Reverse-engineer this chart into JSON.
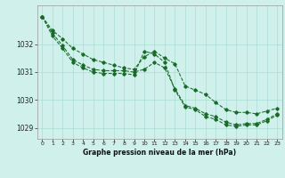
{
  "xlabel": "Graphe pression niveau de la mer (hPa)",
  "background_color": "#cff0eb",
  "grid_color": "#aaddd5",
  "line_color": "#1a6b2a",
  "spine_color": "#999999",
  "ylim": [
    1028.6,
    1033.4
  ],
  "xlim": [
    -0.5,
    23.5
  ],
  "yticks": [
    1029,
    1030,
    1031,
    1032
  ],
  "xticks": [
    0,
    1,
    2,
    3,
    4,
    5,
    6,
    7,
    8,
    9,
    10,
    11,
    12,
    13,
    14,
    15,
    16,
    17,
    18,
    19,
    20,
    21,
    22,
    23
  ],
  "series1": [
    1033.0,
    1032.5,
    1032.2,
    1031.85,
    1031.65,
    1031.45,
    1031.35,
    1031.25,
    1031.15,
    1031.1,
    1031.55,
    1031.75,
    1031.5,
    1031.3,
    1030.5,
    1030.35,
    1030.2,
    1029.9,
    1029.65,
    1029.55,
    1029.55,
    1029.5,
    1029.6,
    1029.7
  ],
  "series2": [
    1033.0,
    1032.4,
    1031.95,
    1031.45,
    1031.25,
    1031.1,
    1031.05,
    1031.05,
    1031.05,
    1031.0,
    1031.1,
    1031.35,
    1031.15,
    1030.4,
    1029.8,
    1029.7,
    1029.5,
    1029.4,
    1029.2,
    1029.1,
    1029.15,
    1029.15,
    1029.3,
    1029.5
  ],
  "series3": [
    1033.0,
    1032.3,
    1031.85,
    1031.35,
    1031.15,
    1031.0,
    1030.95,
    1030.95,
    1030.95,
    1030.9,
    1031.75,
    1031.65,
    1031.35,
    1030.35,
    1029.75,
    1029.65,
    1029.4,
    1029.3,
    1029.1,
    1029.05,
    1029.1,
    1029.1,
    1029.25,
    1029.45
  ]
}
